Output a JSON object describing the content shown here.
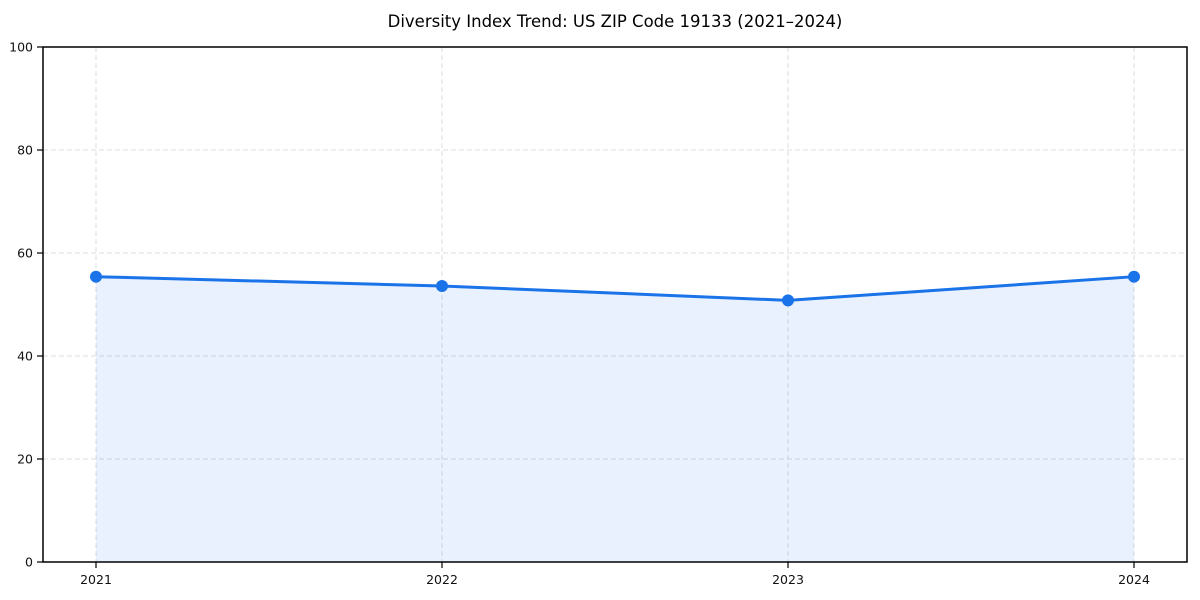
{
  "chart_data": {
    "type": "area",
    "title": "Diversity Index Trend: US ZIP Code 19133 (2021–2024)",
    "x": [
      "2021",
      "2022",
      "2023",
      "2024"
    ],
    "series": [
      {
        "name": "Diversity Index",
        "values": [
          55.4,
          53.6,
          50.8,
          55.4
        ]
      }
    ],
    "xlabel": "",
    "ylabel": "",
    "ylim": [
      0,
      100
    ],
    "yticks": [
      0,
      20,
      40,
      60,
      80,
      100
    ],
    "grid": true,
    "grid_style": "dashed",
    "legend": "none",
    "line_color": "#1a73e8",
    "fill_color": "rgba(26,115,232,0.10)",
    "grid_color": "#dcdcdc",
    "spine_color": "#000000",
    "tick_label_color": "#111111"
  }
}
